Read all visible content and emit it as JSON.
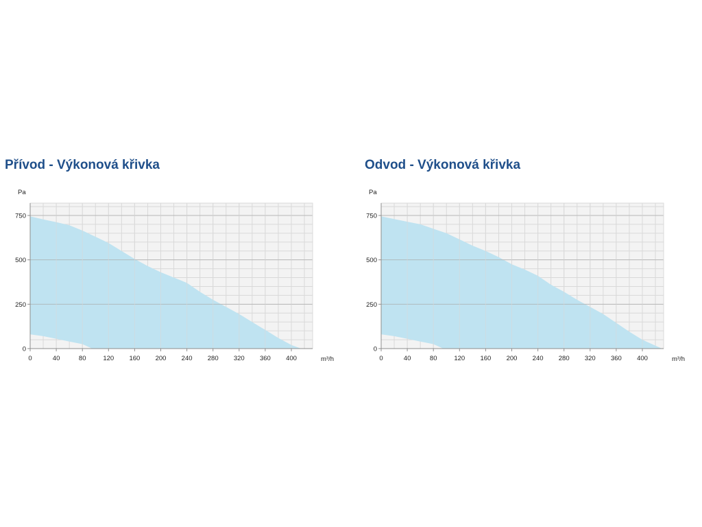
{
  "colors": {
    "title": "#1f4f8a",
    "fill": "#bfe3f1",
    "plot_background": "#f3f3f3",
    "grid_minor": "#d9d9d9",
    "grid_major": "#a8a8a8",
    "axis": "#8c8c8c"
  },
  "chart_data": [
    {
      "type": "area",
      "title": "Přívod - Výkonová křivka",
      "xlabel": "m³/h",
      "ylabel": "Pa",
      "xlim": [
        0,
        430
      ],
      "ylim": [
        0,
        800
      ],
      "x_ticks": [
        0,
        40,
        80,
        120,
        160,
        200,
        240,
        280,
        320,
        360,
        400
      ],
      "y_ticks": [
        0,
        250,
        500,
        750
      ],
      "grid": true,
      "upper_curve": {
        "x": [
          0,
          20,
          40,
          60,
          80,
          100,
          120,
          140,
          160,
          180,
          200,
          220,
          240,
          260,
          280,
          300,
          320,
          340,
          360,
          380,
          400,
          415
        ],
        "y": [
          745,
          728,
          712,
          695,
          665,
          630,
          595,
          550,
          505,
          465,
          430,
          400,
          370,
          320,
          275,
          235,
          195,
          150,
          105,
          60,
          20,
          0
        ]
      },
      "lower_curve": {
        "x": [
          0,
          20,
          40,
          60,
          80,
          95
        ],
        "y": [
          80,
          70,
          55,
          40,
          25,
          0
        ]
      }
    },
    {
      "type": "area",
      "title": "Odvod - Výkonová křivka",
      "xlabel": "m³/h",
      "ylabel": "Pa",
      "xlim": [
        0,
        430
      ],
      "ylim": [
        0,
        800
      ],
      "x_ticks": [
        0,
        40,
        80,
        120,
        160,
        200,
        240,
        280,
        320,
        360,
        400
      ],
      "y_ticks": [
        0,
        250,
        500,
        750
      ],
      "grid": true,
      "upper_curve": {
        "x": [
          0,
          20,
          40,
          60,
          80,
          100,
          120,
          140,
          160,
          180,
          200,
          220,
          240,
          260,
          280,
          300,
          320,
          340,
          360,
          380,
          400,
          430
        ],
        "y": [
          745,
          730,
          715,
          700,
          675,
          650,
          615,
          580,
          550,
          515,
          475,
          445,
          410,
          360,
          320,
          275,
          235,
          195,
          145,
          95,
          50,
          0
        ]
      },
      "lower_curve": {
        "x": [
          0,
          20,
          40,
          60,
          80,
          95
        ],
        "y": [
          80,
          70,
          55,
          40,
          25,
          0
        ]
      }
    }
  ]
}
